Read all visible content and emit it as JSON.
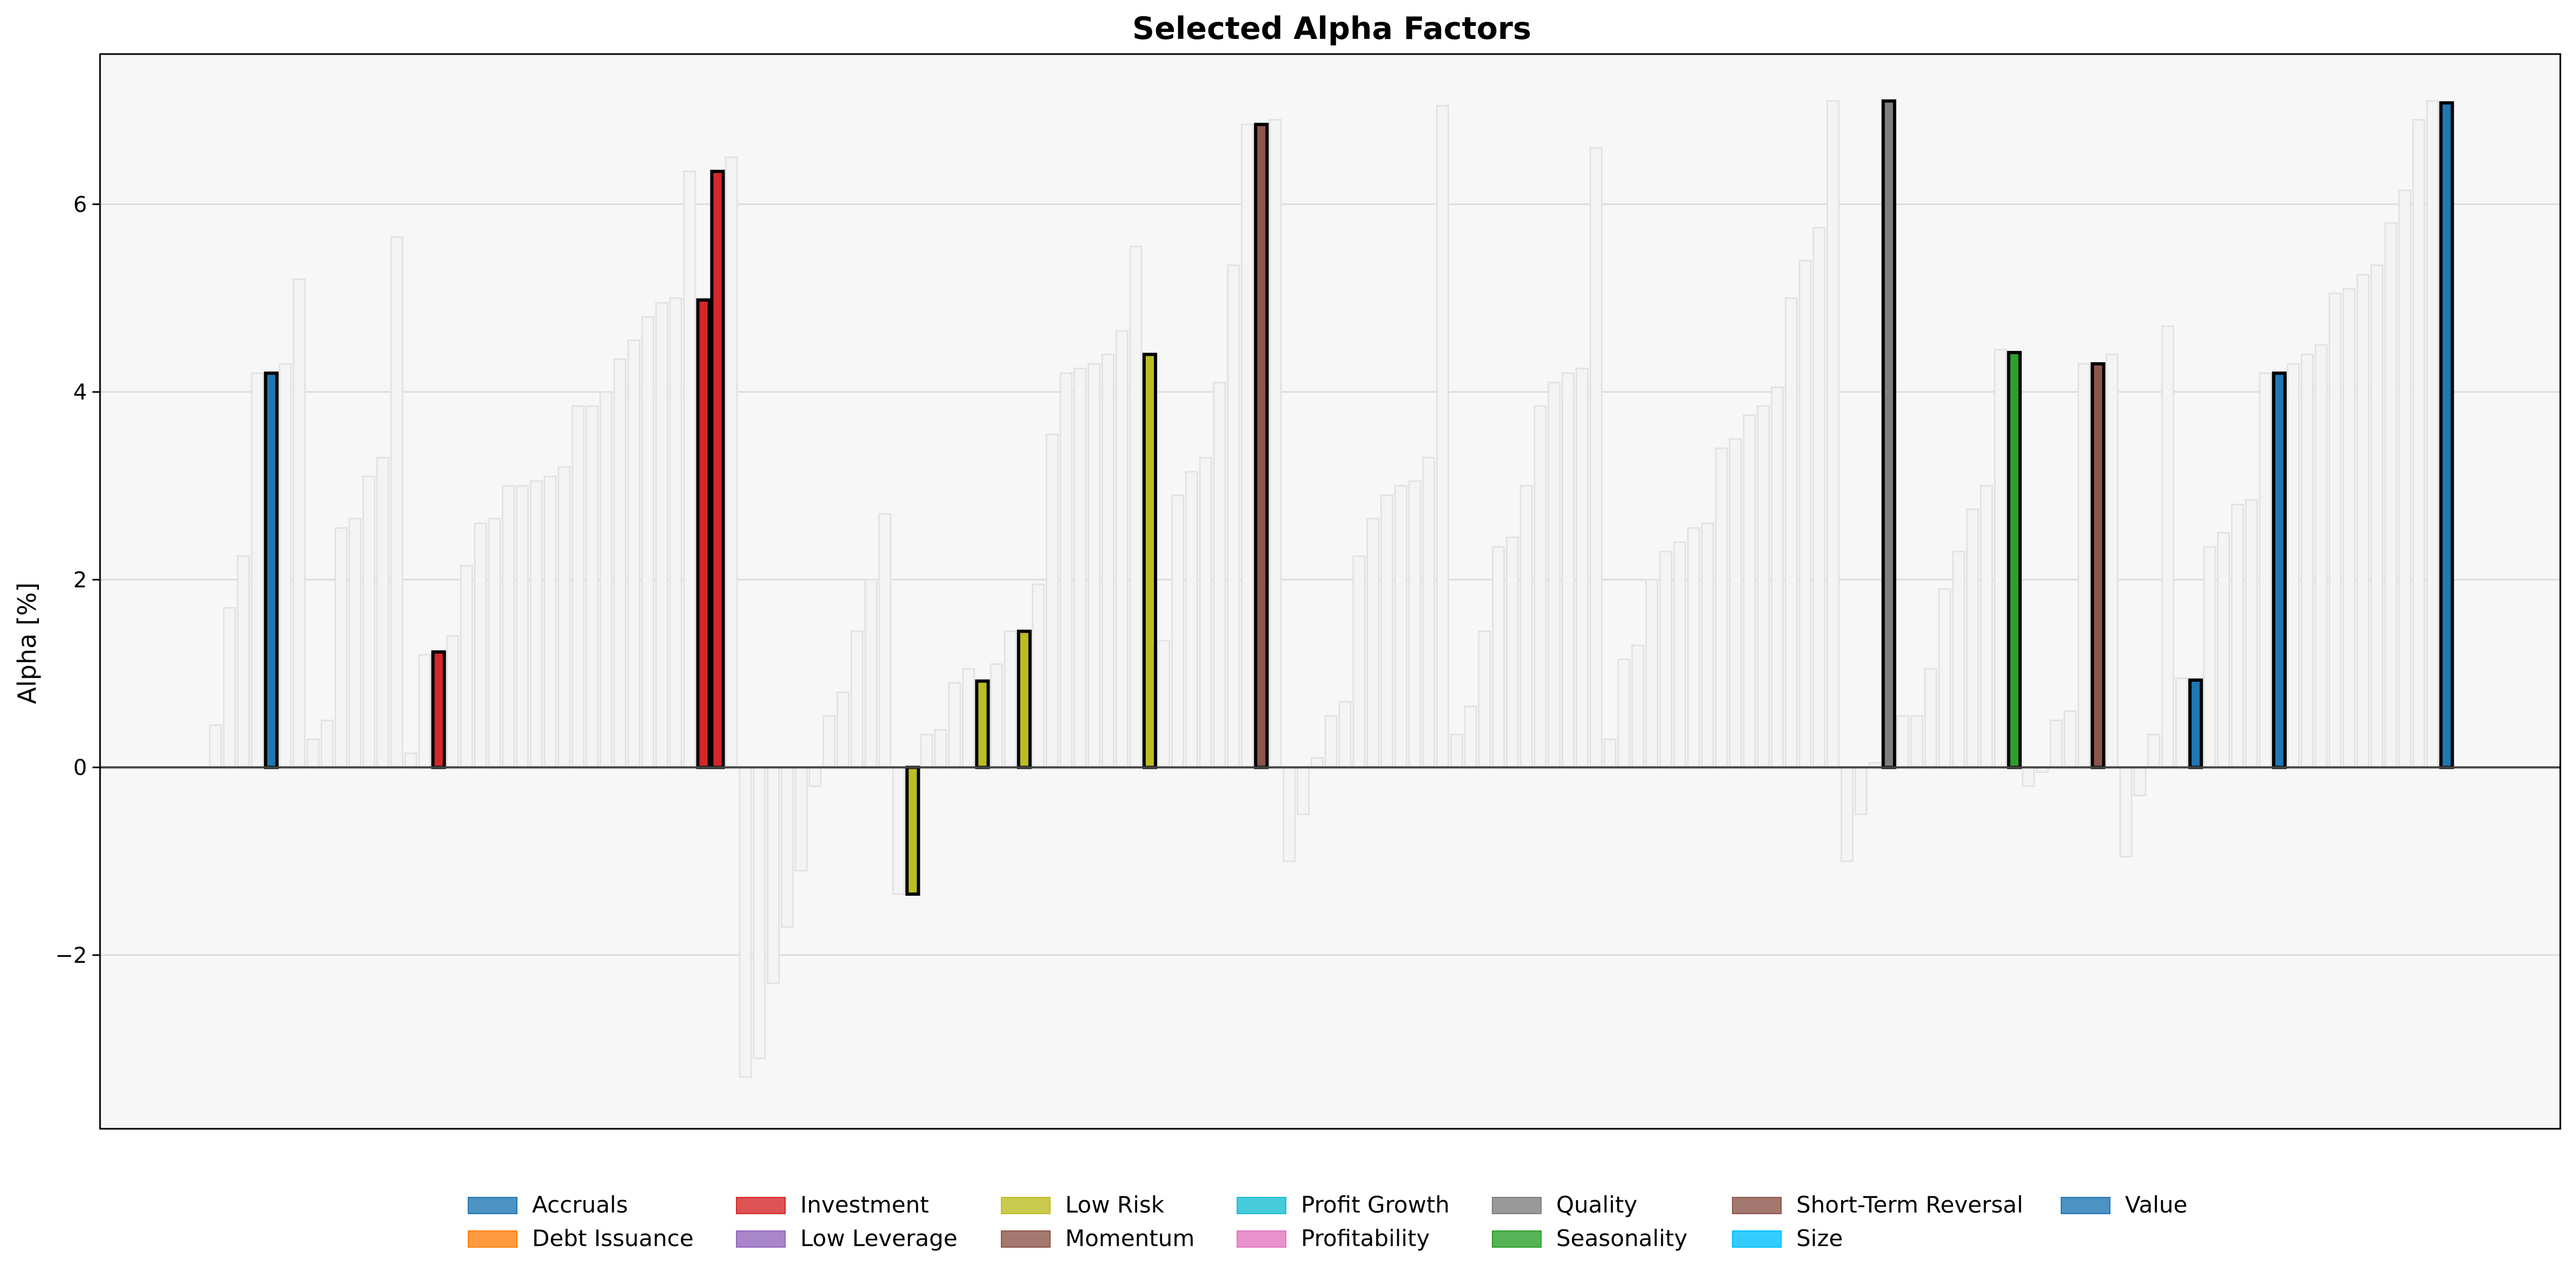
{
  "chart_data": {
    "type": "bar",
    "title": "Selected Alpha Factors",
    "xlabel": "",
    "ylabel": "Alpha [%]",
    "ylim": [
      -3.85,
      7.6
    ],
    "yticks": [
      -2,
      0,
      2,
      4,
      6
    ],
    "ytick_labels": [
      "−2",
      "0",
      "2",
      "4",
      "6"
    ],
    "grid": true,
    "legend": {
      "position": "bottom-center",
      "columns": 8
    },
    "colors": {
      "Accruals": "#1f77b4",
      "Debt Issuance": "#ff7f0e",
      "Investment": "#d62728",
      "Low Leverage": "#9467bd",
      "Low Risk": "#bcbd22",
      "Momentum": "#8c564b",
      "Profit Growth": "#17becf",
      "Profitability": "#e377c2",
      "Quality": "#7f7f7f",
      "Seasonality": "#2ca02c",
      "Short-Term Reversal": "#8c564b",
      "Size": "#00bfff",
      "Value": "#1f77b4"
    },
    "legend_entries": [
      "Accruals",
      "Debt Issuance",
      "Investment",
      "Low Leverage",
      "Low Risk",
      "Momentum",
      "Profit Growth",
      "Profitability",
      "Quality",
      "Seasonality",
      "Short-Term Reversal",
      "Size",
      "Value"
    ],
    "background_values": [
      0.45,
      1.7,
      2.25,
      4.2,
      4.3,
      5.2,
      0.3,
      0.5,
      2.55,
      2.65,
      3.1,
      3.3,
      5.65,
      0.15,
      1.2,
      1.4,
      2.15,
      2.6,
      2.65,
      3.0,
      3.0,
      3.05,
      3.1,
      3.2,
      3.85,
      3.85,
      4.0,
      4.35,
      4.55,
      4.8,
      4.95,
      5.0,
      6.35,
      6.5,
      -3.3,
      -3.1,
      -2.3,
      -1.7,
      -1.1,
      -0.2,
      0.55,
      0.8,
      1.45,
      2.0,
      2.7,
      -1.35,
      0.35,
      0.4,
      0.9,
      1.05,
      1.1,
      1.45,
      1.95,
      3.55,
      4.2,
      4.25,
      4.3,
      4.4,
      4.65,
      5.55,
      1.35,
      2.9,
      3.15,
      3.3,
      4.1,
      5.35,
      6.85,
      6.9,
      -1.0,
      -0.5,
      0.1,
      0.55,
      0.7,
      2.25,
      2.65,
      2.9,
      3.0,
      3.05,
      3.3,
      7.05,
      0.35,
      0.65,
      1.45,
      2.35,
      2.45,
      3.0,
      3.85,
      4.1,
      4.2,
      4.25,
      6.6,
      0.3,
      1.15,
      1.3,
      2.0,
      2.3,
      2.4,
      2.55,
      2.6,
      3.4,
      3.5,
      3.75,
      3.85,
      4.05,
      5.0,
      5.4,
      5.75,
      7.1,
      -1.0,
      -0.5,
      0.05,
      0.55,
      0.55,
      1.05,
      1.9,
      2.3,
      2.75,
      3.0,
      4.45,
      -0.2,
      -0.05,
      0.5,
      0.6,
      4.3,
      4.4,
      -0.95,
      -0.3,
      0.35,
      4.7,
      0.95,
      2.35,
      2.5,
      2.8,
      2.85,
      4.2,
      4.3,
      4.4,
      4.5,
      5.05,
      5.1,
      5.25,
      5.35,
      5.8,
      6.15,
      6.9,
      7.1
    ],
    "selected_bars": [
      {
        "group": "Accruals",
        "value": 4.2
      },
      {
        "group": "Investment",
        "value": 1.23
      },
      {
        "group": "Investment",
        "value": 4.98
      },
      {
        "group": "Investment",
        "value": 6.35
      },
      {
        "group": "Low Risk",
        "value": -1.35
      },
      {
        "group": "Low Risk",
        "value": 0.92
      },
      {
        "group": "Low Risk",
        "value": 1.45
      },
      {
        "group": "Low Risk",
        "value": 4.4
      },
      {
        "group": "Momentum",
        "value": 6.85
      },
      {
        "group": "Quality",
        "value": 7.1
      },
      {
        "group": "Seasonality",
        "value": 4.42
      },
      {
        "group": "Short-Term Reversal",
        "value": 4.3
      },
      {
        "group": "Value",
        "value": 0.93
      },
      {
        "group": "Value",
        "value": 4.2
      },
      {
        "group": "Value",
        "value": 7.08
      }
    ]
  }
}
